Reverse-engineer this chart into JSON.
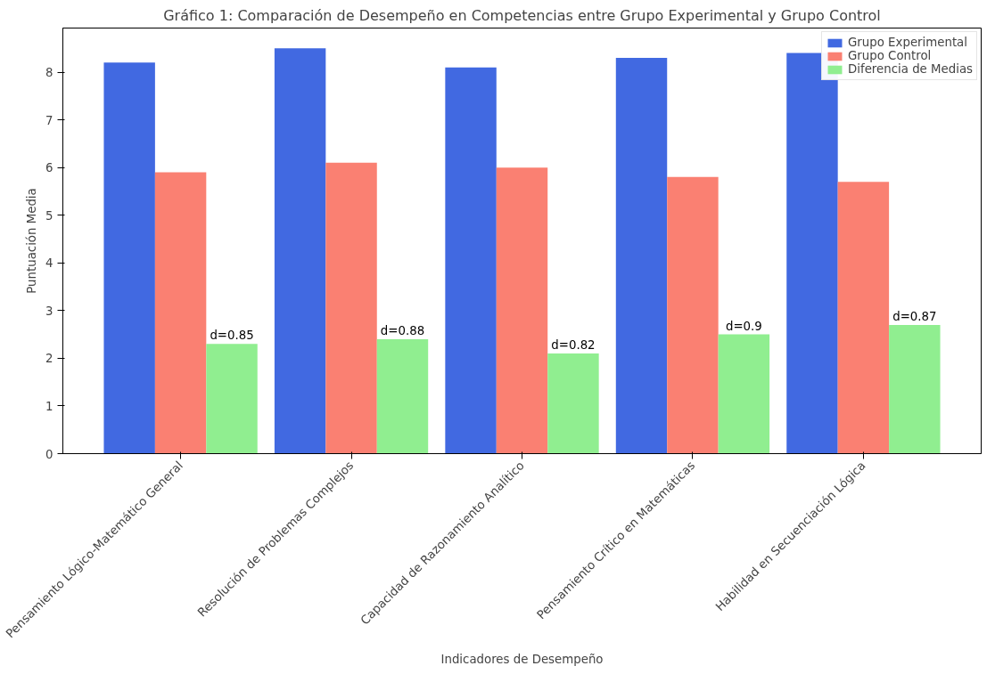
{
  "chart_data": {
    "type": "bar",
    "title": "Gráfico 1: Comparación de Desempeño en Competencias entre Grupo Experimental y Grupo Control",
    "xlabel": "Indicadores de Desempeño",
    "ylabel": "Puntuación Media",
    "categories": [
      "Pensamiento Lógico-Matemático General",
      "Resolución de Problemas Complejos",
      "Capacidad de Razonamiento Analítico",
      "Pensamiento Crítico en Matemáticas",
      "Habilidad en Secuenciación Lógica"
    ],
    "series": [
      {
        "name": "Grupo Experimental",
        "color": "#4169e1",
        "values": [
          8.2,
          8.5,
          8.1,
          8.3,
          8.4
        ]
      },
      {
        "name": "Grupo Control",
        "color": "#fa8072",
        "values": [
          5.9,
          6.1,
          6.0,
          5.8,
          5.7
        ]
      },
      {
        "name": "Diferencia de Medias",
        "color": "#90ee90",
        "values": [
          2.3,
          2.4,
          2.1,
          2.5,
          2.7
        ]
      }
    ],
    "annotations": [
      "d=0.85",
      "d=0.88",
      "d=0.82",
      "d=0.9",
      "d=0.87"
    ],
    "ylim": [
      0,
      8.925
    ],
    "yticks": [
      0,
      1,
      2,
      3,
      4,
      5,
      6,
      7,
      8
    ],
    "grid": false,
    "legend": "top right"
  }
}
